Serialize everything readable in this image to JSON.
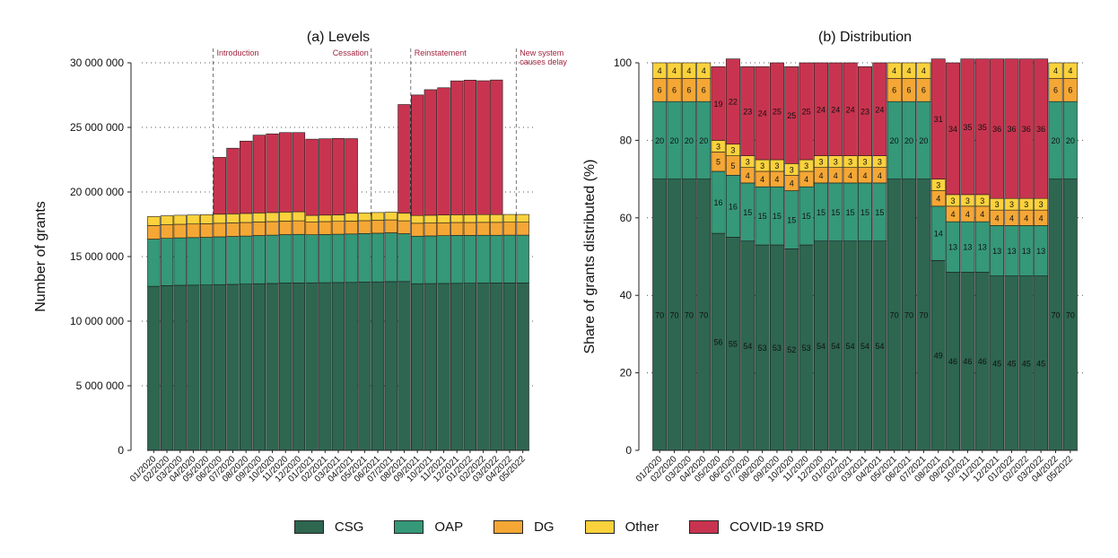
{
  "chart_data": [
    {
      "type": "bar",
      "stacked": true,
      "title": "(a) Levels",
      "xlabel": "",
      "ylabel": "Number of grants",
      "ylim": [
        0,
        30000000
      ],
      "yticks": [
        0,
        5000000,
        10000000,
        15000000,
        20000000,
        25000000,
        30000000
      ],
      "ytick_labels": [
        "0",
        "5 000 000",
        "10 000 000",
        "15 000 000",
        "20 000 000",
        "25 000 000",
        "30 000 000"
      ],
      "grid": "dotted horizontal",
      "categories": [
        "01/2020",
        "02/2020",
        "03/2020",
        "04/2020",
        "05/2020",
        "06/2020",
        "07/2020",
        "08/2020",
        "09/2020",
        "10/2020",
        "11/2020",
        "12/2020",
        "01/2021",
        "02/2021",
        "03/2021",
        "04/2021",
        "05/2021",
        "06/2021",
        "07/2021",
        "08/2021",
        "09/2021",
        "10/2021",
        "11/2021",
        "12/2021",
        "01/2022",
        "02/2022",
        "03/2022",
        "04/2022",
        "05/2022"
      ],
      "series": [
        {
          "name": "CSG",
          "color": "#2e6650",
          "values": [
            12700000,
            12750000,
            12780000,
            12790000,
            12800000,
            12830000,
            12850000,
            12870000,
            12900000,
            12920000,
            12950000,
            12960000,
            12970000,
            12980000,
            12990000,
            13000000,
            13020000,
            13040000,
            13060000,
            13070000,
            12900000,
            12910000,
            12920000,
            12930000,
            12940000,
            12950000,
            12960000,
            12960000,
            12960000
          ]
        },
        {
          "name": "OAP",
          "color": "#359878",
          "values": [
            3650000,
            3660000,
            3670000,
            3680000,
            3690000,
            3700000,
            3710000,
            3720000,
            3730000,
            3740000,
            3750000,
            3760000,
            3720000,
            3730000,
            3740000,
            3750000,
            3760000,
            3770000,
            3780000,
            3700000,
            3680000,
            3690000,
            3700000,
            3710000,
            3700000,
            3700000,
            3690000,
            3700000,
            3700000
          ]
        },
        {
          "name": "DG",
          "color": "#f5a735",
          "values": [
            1050000,
            1050000,
            1050000,
            1050000,
            1050000,
            1050000,
            1050000,
            1050000,
            1050000,
            1050000,
            1050000,
            1050000,
            1000000,
            1000000,
            1000000,
            1000000,
            1000000,
            1000000,
            1000000,
            1000000,
            1000000,
            1000000,
            1000000,
            1000000,
            1000000,
            1000000,
            1000000,
            1000000,
            1000000
          ]
        },
        {
          "name": "Other",
          "color": "#fbd23c",
          "values": [
            700000,
            700000,
            700000,
            700000,
            700000,
            700000,
            700000,
            700000,
            700000,
            700000,
            700000,
            700000,
            500000,
            500000,
            500000,
            600000,
            600000,
            600000,
            600000,
            600000,
            600000,
            600000,
            600000,
            600000,
            600000,
            600000,
            600000,
            600000,
            600000
          ]
        },
        {
          "name": "COVID-19 SRD",
          "color": "#c8344f",
          "values": [
            0,
            0,
            0,
            0,
            0,
            4400000,
            5080000,
            5600000,
            6020000,
            6090000,
            6150000,
            6130000,
            5900000,
            5910000,
            5920000,
            5780000,
            0,
            0,
            0,
            8400000,
            9330000,
            9720000,
            9850000,
            10360000,
            10420000,
            10360000,
            10420000,
            0,
            0
          ]
        }
      ],
      "annotations": [
        {
          "label": "Introduction",
          "at": "05/2020"
        },
        {
          "label": "Cessation",
          "at": "05/2021"
        },
        {
          "label": "Reinstatement",
          "at": "08/2021"
        },
        {
          "label": "New system causes delay",
          "lines": [
            "New system",
            "causes delay"
          ],
          "at": "04/2022"
        }
      ]
    },
    {
      "type": "bar",
      "stacked": true,
      "title": "(b) Distribution",
      "xlabel": "",
      "ylabel": "Share of grants distributed (%)",
      "ylim": [
        0,
        100
      ],
      "yticks": [
        0,
        20,
        40,
        60,
        80,
        100
      ],
      "ytick_labels": [
        "0",
        "20",
        "40",
        "60",
        "80",
        "100"
      ],
      "grid": "dotted horizontal",
      "categories": [
        "01/2020",
        "02/2020",
        "03/2020",
        "04/2020",
        "05/2020",
        "06/2020",
        "07/2020",
        "08/2020",
        "09/2020",
        "10/2020",
        "11/2020",
        "12/2020",
        "01/2021",
        "02/2021",
        "03/2021",
        "04/2021",
        "05/2021",
        "06/2021",
        "07/2021",
        "08/2021",
        "09/2021",
        "10/2021",
        "11/2021",
        "12/2021",
        "01/2022",
        "02/2022",
        "03/2022",
        "04/2022",
        "05/2022"
      ],
      "series": [
        {
          "name": "CSG",
          "color": "#2e6650",
          "values": [
            70,
            70,
            70,
            70,
            56,
            55,
            54,
            53,
            53,
            52,
            53,
            54,
            54,
            54,
            54,
            54,
            70,
            70,
            70,
            49,
            46,
            46,
            46,
            45,
            45,
            45,
            45,
            70,
            70
          ],
          "labels": [
            "70",
            "70",
            "70",
            "70",
            "56",
            "55",
            "54",
            "53",
            "53",
            "52",
            "53",
            "54",
            "54",
            "54",
            "54",
            "54",
            "70",
            "70",
            "70",
            "49",
            "46",
            "46",
            "46",
            "45",
            "45",
            "45",
            "45",
            "70",
            "70"
          ]
        },
        {
          "name": "OAP",
          "color": "#359878",
          "values": [
            20,
            20,
            20,
            20,
            16,
            16,
            15,
            15,
            15,
            15,
            15,
            15,
            15,
            15,
            15,
            15,
            20,
            20,
            20,
            14,
            13,
            13,
            13,
            13,
            13,
            13,
            13,
            20,
            20
          ],
          "labels": [
            "20",
            "20",
            "20",
            "20",
            "16",
            "16",
            "15",
            "15",
            "15",
            "15",
            "15",
            "15",
            "15",
            "15",
            "15",
            "15",
            "20",
            "20",
            "20",
            "14",
            "13",
            "13",
            "13",
            "13",
            "13",
            "13",
            "13",
            "20",
            "20"
          ]
        },
        {
          "name": "DG",
          "color": "#f5a735",
          "values": [
            6,
            6,
            6,
            6,
            5,
            5,
            4,
            4,
            4,
            4,
            4,
            4,
            4,
            4,
            4,
            4,
            6,
            6,
            6,
            4,
            4,
            4,
            4,
            4,
            4,
            4,
            4,
            6,
            6
          ],
          "labels": [
            "6",
            "6",
            "6",
            "6",
            "5",
            "5",
            "4",
            "4",
            "4",
            "4",
            "4",
            "4",
            "4",
            "4",
            "4",
            "4",
            "6",
            "6",
            "6",
            "4",
            "4",
            "4",
            "4",
            "4",
            "4",
            "4",
            "4",
            "6",
            "6"
          ]
        },
        {
          "name": "Other",
          "color": "#fbd23c",
          "values": [
            4,
            4,
            4,
            4,
            3,
            3,
            3,
            3,
            3,
            3,
            3,
            3,
            3,
            3,
            3,
            3,
            4,
            4,
            4,
            3,
            3,
            3,
            3,
            3,
            3,
            3,
            3,
            4,
            4
          ],
          "labels": [
            "4",
            "4",
            "4",
            "4",
            "3",
            "3",
            "3",
            "3",
            "3",
            "3",
            "3",
            "3",
            "3",
            "3",
            "3",
            "3",
            "4",
            "4",
            "4",
            "3",
            "3",
            "3",
            "3",
            "3",
            "3",
            "3",
            "3",
            "4",
            "4"
          ]
        },
        {
          "name": "COVID-19 SRD",
          "color": "#c8344f",
          "values": [
            0,
            0,
            0,
            0,
            19,
            22,
            23,
            24,
            25,
            25,
            25,
            24,
            24,
            24,
            23,
            24,
            0,
            0,
            0,
            31,
            34,
            35,
            35,
            36,
            36,
            36,
            36,
            0,
            0
          ],
          "labels": [
            "",
            "",
            "",
            "",
            "19",
            "22",
            "23",
            "24",
            "25",
            "25",
            "25",
            "24",
            "24",
            "24",
            "23",
            "24",
            "",
            "",
            "",
            "31",
            "34",
            "35",
            "35",
            "36",
            "36",
            "36",
            "36",
            "",
            ""
          ]
        }
      ]
    }
  ],
  "legend": {
    "items": [
      {
        "label": "CSG",
        "color": "#2e6650"
      },
      {
        "label": "OAP",
        "color": "#359878"
      },
      {
        "label": "DG",
        "color": "#f5a735"
      },
      {
        "label": "Other",
        "color": "#fbd23c"
      },
      {
        "label": "COVID-19 SRD",
        "color": "#c8344f"
      }
    ]
  }
}
